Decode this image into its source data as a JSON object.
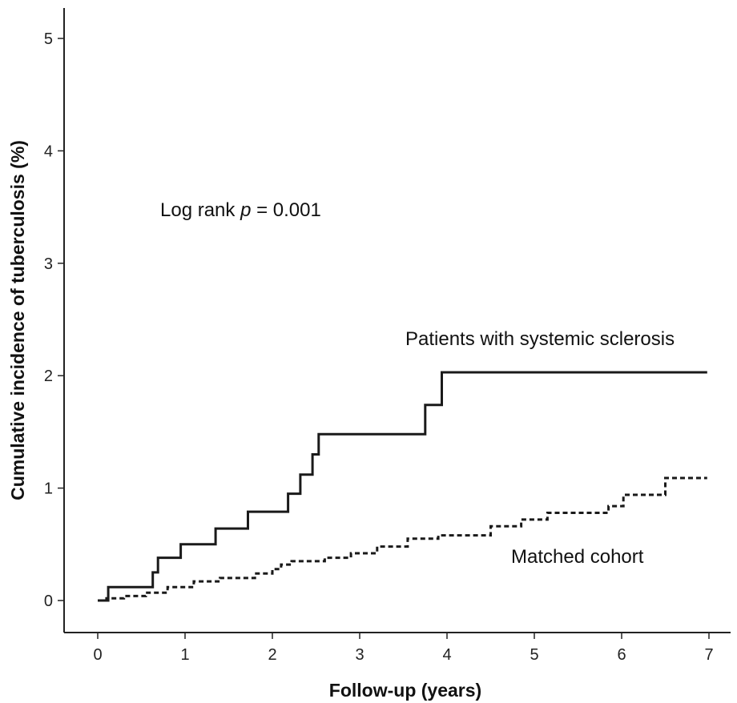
{
  "chart_data": {
    "type": "line",
    "title": "",
    "xlabel": "Follow-up (years)",
    "ylabel": "Cumulative incidence of tuberculosis (%)",
    "xlim": [
      0,
      7
    ],
    "ylim": [
      0,
      5
    ],
    "xticks": [
      "0",
      "1",
      "2",
      "3",
      "4",
      "5",
      "6",
      "7"
    ],
    "yticks": [
      "0",
      "1",
      "2",
      "3",
      "4",
      "5"
    ],
    "grid": false,
    "annotation": {
      "prefix": "Log rank ",
      "italic": "p",
      "suffix": " = 0.001"
    },
    "series": [
      {
        "name": "Patients with systemic sclerosis",
        "style": "solid",
        "step": true,
        "x": [
          0,
          0.12,
          0.63,
          0.69,
          0.95,
          1.35,
          1.72,
          2.18,
          2.32,
          2.46,
          2.53,
          3.75,
          3.94,
          6.98
        ],
        "y": [
          0,
          0.12,
          0.25,
          0.38,
          0.5,
          0.64,
          0.79,
          0.95,
          1.12,
          1.3,
          1.48,
          1.74,
          2.03,
          2.03
        ]
      },
      {
        "name": "Matched cohort",
        "style": "dashed",
        "step": true,
        "x": [
          0,
          0.1,
          0.3,
          0.55,
          0.8,
          1.1,
          1.4,
          1.8,
          2.0,
          2.1,
          2.22,
          2.6,
          2.9,
          3.2,
          3.55,
          3.9,
          4.5,
          4.85,
          5.15,
          5.85,
          6.02,
          6.5,
          6.98
        ],
        "y": [
          0,
          0.02,
          0.04,
          0.07,
          0.12,
          0.17,
          0.2,
          0.24,
          0.28,
          0.32,
          0.35,
          0.38,
          0.42,
          0.48,
          0.55,
          0.58,
          0.66,
          0.72,
          0.78,
          0.84,
          0.94,
          1.09,
          1.09
        ]
      }
    ]
  }
}
